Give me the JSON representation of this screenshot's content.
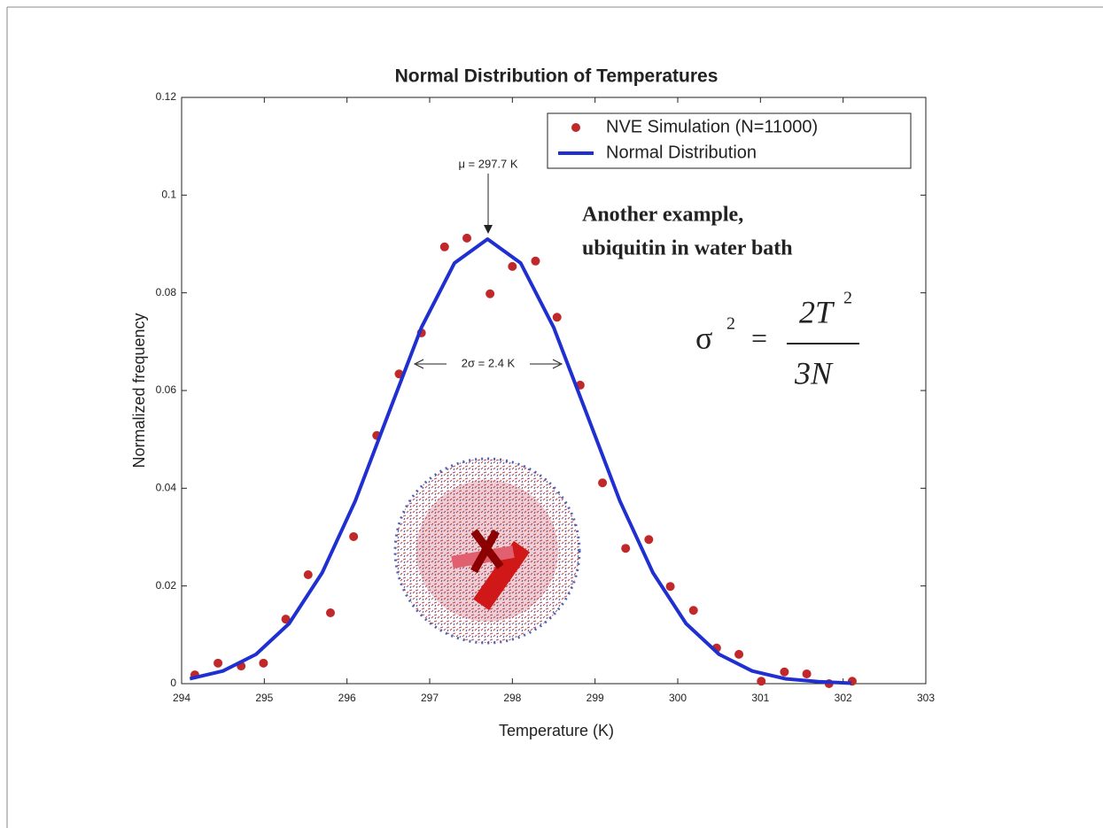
{
  "chart_data": {
    "type": "scatter",
    "title": "Normal Distribution of Temperatures",
    "x_label": "Temperature (K)",
    "y_label": "Normalized frequency",
    "xlim": [
      294,
      303
    ],
    "ylim": [
      0,
      0.12
    ],
    "xticks": [
      294,
      295,
      296,
      297,
      298,
      299,
      300,
      301,
      302,
      303
    ],
    "yticks": [
      0,
      0.02,
      0.04,
      0.06,
      0.08,
      0.1,
      0.12
    ],
    "legend": "upper right",
    "series": [
      {
        "name": "NVE Simulation (N=11000)",
        "kind": "marker",
        "color": "#c0282a",
        "x": [
          294.16,
          294.44,
          294.72,
          294.99,
          295.26,
          295.53,
          295.8,
          296.08,
          296.36,
          296.63,
          296.9,
          297.18,
          297.45,
          297.73,
          298.0,
          298.28,
          298.54,
          298.82,
          299.09,
          299.37,
          299.65,
          299.91,
          300.19,
          300.47,
          300.74,
          301.01,
          301.29,
          301.56,
          301.83,
          302.11
        ],
        "values": [
          0.0018,
          0.0042,
          0.0036,
          0.0042,
          0.0132,
          0.0223,
          0.0145,
          0.0301,
          0.0508,
          0.0634,
          0.0718,
          0.0894,
          0.0912,
          0.0798,
          0.0854,
          0.0865,
          0.075,
          0.0611,
          0.0411,
          0.0277,
          0.0295,
          0.0199,
          0.015,
          0.0073,
          0.006,
          0.0005,
          0.0024,
          0.002,
          0.0,
          0.0005
        ]
      },
      {
        "name": "Normal Distribution",
        "kind": "line",
        "color": "#1f2fd0",
        "x": [
          294.1,
          294.5,
          294.9,
          295.3,
          295.7,
          296.1,
          296.5,
          296.9,
          297.3,
          297.7,
          298.1,
          298.5,
          298.9,
          299.3,
          299.7,
          300.1,
          300.5,
          300.9,
          301.3,
          301.7,
          302.1
        ],
        "values": [
          0.001,
          0.0026,
          0.006,
          0.0123,
          0.0227,
          0.0374,
          0.0552,
          0.0729,
          0.0861,
          0.091,
          0.0861,
          0.0729,
          0.0552,
          0.0374,
          0.0227,
          0.0123,
          0.006,
          0.0026,
          0.001,
          0.0004,
          0.0001
        ]
      }
    ],
    "annotations": {
      "mean": "μ = 297.7 K",
      "width": "2σ = 2.4 K"
    },
    "note": [
      "Another example,",
      "ubiquitin in water bath"
    ],
    "formula": {
      "lhs": "σ",
      "lhs_exp": "2",
      "eq": "=",
      "num": "2T",
      "num_exp": "2",
      "den": "3N"
    }
  }
}
